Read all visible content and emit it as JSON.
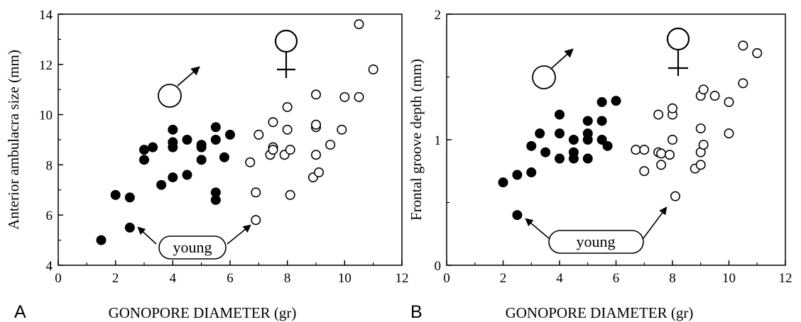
{
  "chart_data": [
    {
      "type": "scatter",
      "panel_label": "A",
      "xlabel": "GONOPORE DIAMETER (gr)",
      "ylabel": "Anterior ambulacra size (mm)",
      "xlim": [
        0,
        12
      ],
      "ylim": [
        4,
        14
      ],
      "xticks": [
        "0",
        "2",
        "4",
        "6",
        "8",
        "10",
        "12"
      ],
      "yticks": [
        "4",
        "6",
        "8",
        "10",
        "12",
        "14"
      ],
      "annotation": "young",
      "series": [
        {
          "marker": "filled-circle",
          "symbol": "male",
          "x": [
            1.5,
            2.0,
            2.5,
            2.5,
            3.0,
            3.0,
            3.3,
            3.6,
            4.0,
            4.0,
            4.0,
            4.0,
            4.5,
            4.5,
            5.0,
            5.0,
            5.0,
            5.5,
            5.5,
            5.5,
            5.5,
            5.8,
            6.0
          ],
          "y": [
            5.0,
            6.8,
            6.7,
            5.5,
            8.2,
            8.6,
            8.7,
            7.2,
            9.4,
            8.7,
            8.9,
            7.5,
            9.0,
            7.6,
            8.7,
            8.2,
            8.8,
            9.5,
            6.9,
            6.6,
            9.0,
            8.3,
            9.2
          ]
        },
        {
          "marker": "open-circle",
          "symbol": "female",
          "x": [
            6.7,
            6.9,
            6.9,
            7.0,
            7.4,
            7.5,
            7.5,
            7.5,
            7.9,
            8.0,
            8.0,
            8.1,
            8.1,
            8.9,
            9.0,
            9.0,
            9.0,
            9.0,
            9.1,
            9.5,
            9.9,
            10.0,
            10.5,
            10.5,
            11.0
          ],
          "y": [
            8.1,
            5.8,
            6.9,
            9.2,
            8.4,
            8.7,
            8.6,
            9.7,
            8.4,
            9.4,
            10.3,
            8.6,
            6.8,
            7.5,
            8.4,
            9.5,
            9.6,
            10.8,
            7.7,
            8.8,
            9.4,
            10.7,
            10.7,
            13.6,
            11.8
          ]
        }
      ]
    },
    {
      "type": "scatter",
      "panel_label": "B",
      "xlabel": "GONOPORE DIAMETER (gr)",
      "ylabel": "Frontal groove depth (mm)",
      "xlim": [
        0,
        12
      ],
      "ylim": [
        0,
        2
      ],
      "xticks": [
        "0",
        "2",
        "4",
        "6",
        "8",
        "10",
        "12"
      ],
      "yticks": [
        "0",
        "1",
        "2"
      ],
      "annotation": "young",
      "series": [
        {
          "marker": "filled-circle",
          "symbol": "male",
          "x": [
            2.0,
            2.5,
            2.5,
            3.0,
            3.0,
            3.3,
            3.5,
            4.0,
            4.0,
            4.0,
            4.5,
            4.5,
            4.5,
            5.0,
            5.0,
            5.0,
            5.0,
            5.5,
            5.5,
            5.5,
            5.7,
            6.0
          ],
          "y": [
            0.66,
            0.72,
            0.4,
            0.74,
            0.95,
            1.05,
            0.9,
            1.2,
            1.05,
            0.85,
            1.0,
            0.9,
            0.85,
            1.15,
            1.05,
            1.0,
            0.85,
            1.3,
            1.15,
            1.0,
            0.95,
            1.31
          ]
        },
        {
          "marker": "open-circle",
          "symbol": "female",
          "x": [
            6.7,
            7.0,
            7.0,
            7.5,
            7.5,
            7.6,
            7.6,
            7.9,
            8.0,
            8.0,
            8.0,
            8.1,
            8.8,
            9.0,
            9.0,
            9.0,
            9.0,
            9.1,
            9.1,
            9.5,
            10.0,
            10.0,
            10.5,
            10.5,
            11.0
          ],
          "y": [
            0.92,
            0.92,
            0.75,
            1.2,
            0.9,
            0.8,
            0.89,
            0.88,
            1.0,
            1.2,
            1.25,
            0.55,
            0.77,
            0.9,
            1.09,
            1.35,
            0.8,
            0.96,
            1.4,
            1.35,
            1.3,
            1.05,
            1.45,
            1.75,
            1.69
          ]
        }
      ]
    }
  ]
}
